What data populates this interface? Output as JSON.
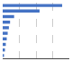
{
  "chart_data": {
    "type": "bar",
    "orientation": "horizontal",
    "categories": [
      null,
      null,
      null,
      null,
      null,
      null,
      null,
      null,
      null,
      null
    ],
    "values": [
      2500,
      1550,
      480,
      310,
      260,
      210,
      170,
      130,
      95,
      55
    ],
    "color": "#4472c4",
    "xlim": [
      0,
      2800
    ],
    "xticks": [
      700,
      1400,
      2100,
      2800
    ],
    "grid": true,
    "tick_labels": false
  }
}
